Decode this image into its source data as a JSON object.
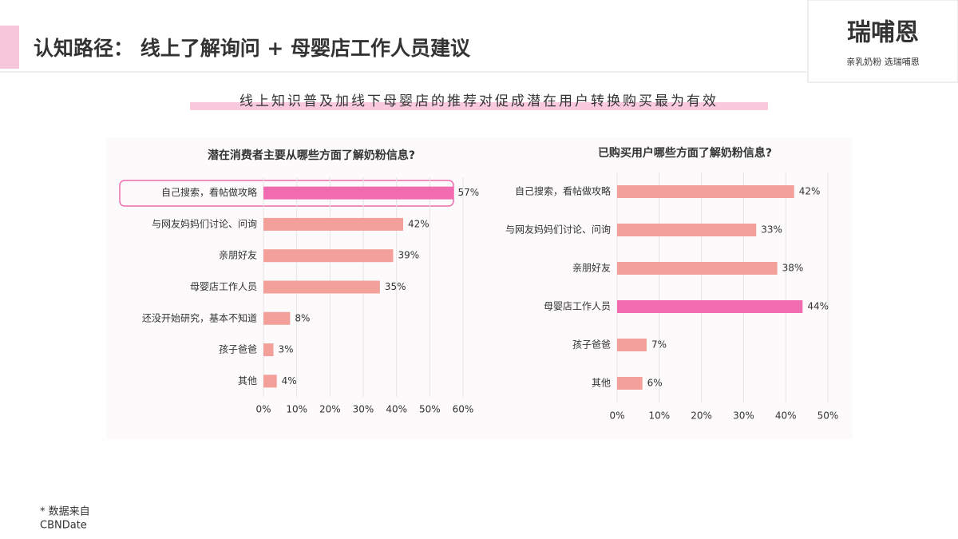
{
  "slide": {
    "title": "认知路径： 线上了解询问 + 母婴店工作人员建议",
    "subtitle": "线上知识普及加线下母婴店的推荐对促成潜在用户转换购买最为有效",
    "logo": "瑞哺恩",
    "slogan": "亲乳奶粉 选瑞哺恩",
    "footnote": [
      "* 数据来自",
      "CBNDate"
    ]
  },
  "chart_data": [
    {
      "type": "hbar",
      "title": "潜在消费者主要从哪些方面了解奶粉信息?",
      "categories": [
        "自己搜索，看帖做攻略",
        "与网友妈妈们讨论、问询",
        "亲朋好友",
        "母婴店工作人员",
        "还没开始研究，基本不知道",
        "孩子爸爸",
        "其他"
      ],
      "values": [
        57,
        42,
        39,
        35,
        8,
        3,
        4
      ],
      "value_labels": [
        "57%",
        "42%",
        "39%",
        "35%",
        "8%",
        "3%",
        "4%"
      ],
      "colors": [
        "#f06bb0",
        "#f4a09a",
        "#f4a09a",
        "#f4a09a",
        "#f4a09a",
        "#f4a09a",
        "#f4a09a"
      ],
      "xlim": [
        0,
        60
      ],
      "xticks": [
        {
          "value": 0,
          "label": "0%"
        },
        {
          "value": 10,
          "label": "10%"
        },
        {
          "value": 20,
          "label": "20%"
        },
        {
          "value": 30,
          "label": "30%"
        },
        {
          "value": 40,
          "label": "40%"
        },
        {
          "value": 50,
          "label": "50%"
        },
        {
          "value": 60,
          "label": "60%"
        }
      ],
      "grid": true
    },
    {
      "type": "hbar",
      "title": "已购买用户哪些方面了解奶粉信息?",
      "categories": [
        "自己搜索，看帖做攻略",
        "与网友妈妈们讨论、问询",
        "亲朋好友",
        "母婴店工作人员",
        "孩子爸爸",
        "其他"
      ],
      "values": [
        42,
        33,
        38,
        44,
        7,
        6
      ],
      "value_labels": [
        "42%",
        "33%",
        "38%",
        "44%",
        "7%",
        "6%"
      ],
      "colors": [
        "#f4a09a",
        "#f4a09a",
        "#f4a09a",
        "#f06bb0",
        "#f4a09a",
        "#f4a09a"
      ],
      "xlim": [
        0,
        50
      ],
      "xticks": [
        {
          "value": 0,
          "label": "0%"
        },
        {
          "value": 10,
          "label": "10%"
        },
        {
          "value": 20,
          "label": "20%"
        },
        {
          "value": 30,
          "label": "30%"
        },
        {
          "value": 40,
          "label": "40%"
        },
        {
          "value": 50,
          "label": "50%"
        }
      ],
      "grid": true
    }
  ]
}
